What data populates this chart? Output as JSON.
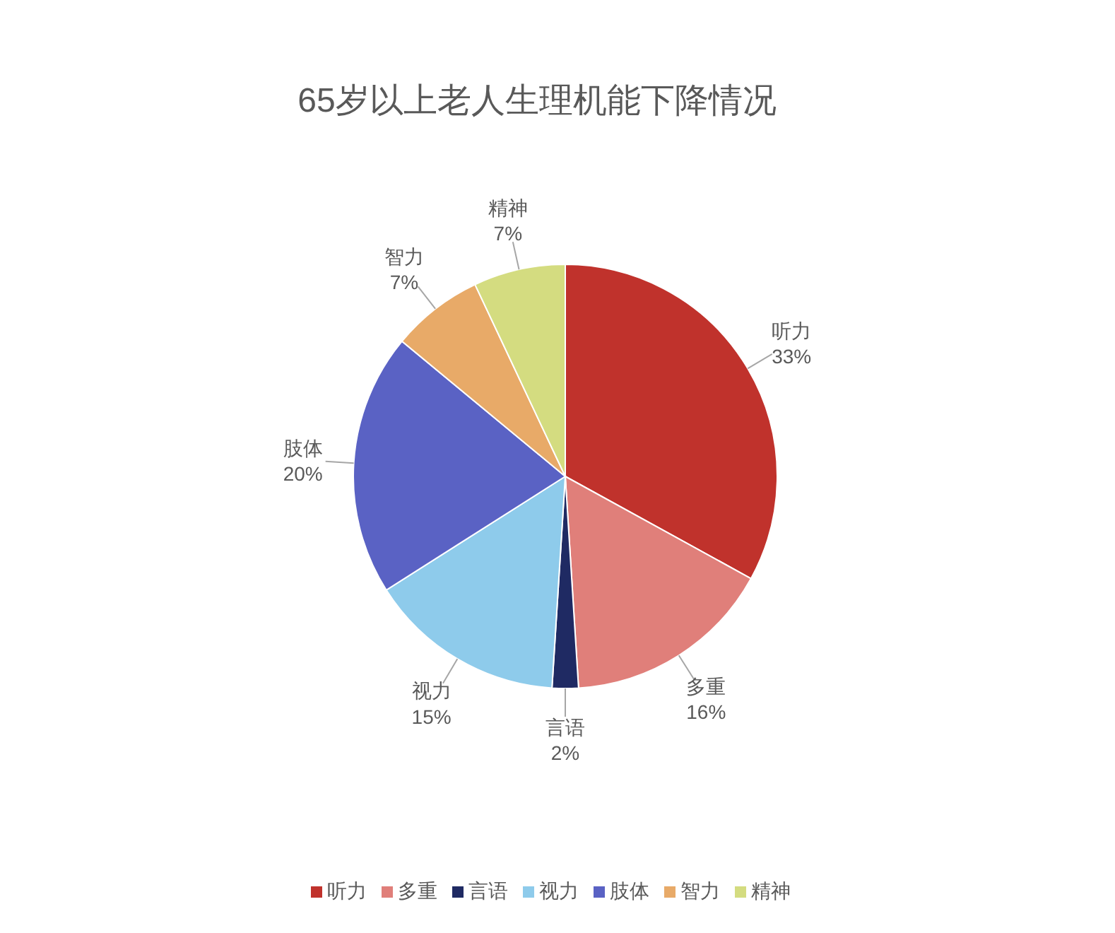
{
  "chart_data": {
    "type": "pie",
    "title": "65岁以上老人生理机能下降情况",
    "categories": [
      "听力",
      "多重",
      "言语",
      "视力",
      "肢体",
      "智力",
      "精神"
    ],
    "values": [
      33,
      16,
      2,
      15,
      20,
      7,
      7
    ],
    "value_labels": [
      "33%",
      "16%",
      "2%",
      "15%",
      "20%",
      "7%",
      "7%"
    ],
    "colors": [
      "#c0322c",
      "#e07f7a",
      "#1f2a63",
      "#8ecbeb",
      "#5a62c4",
      "#e8aa68",
      "#d4dc80"
    ],
    "legend": "bottom"
  }
}
